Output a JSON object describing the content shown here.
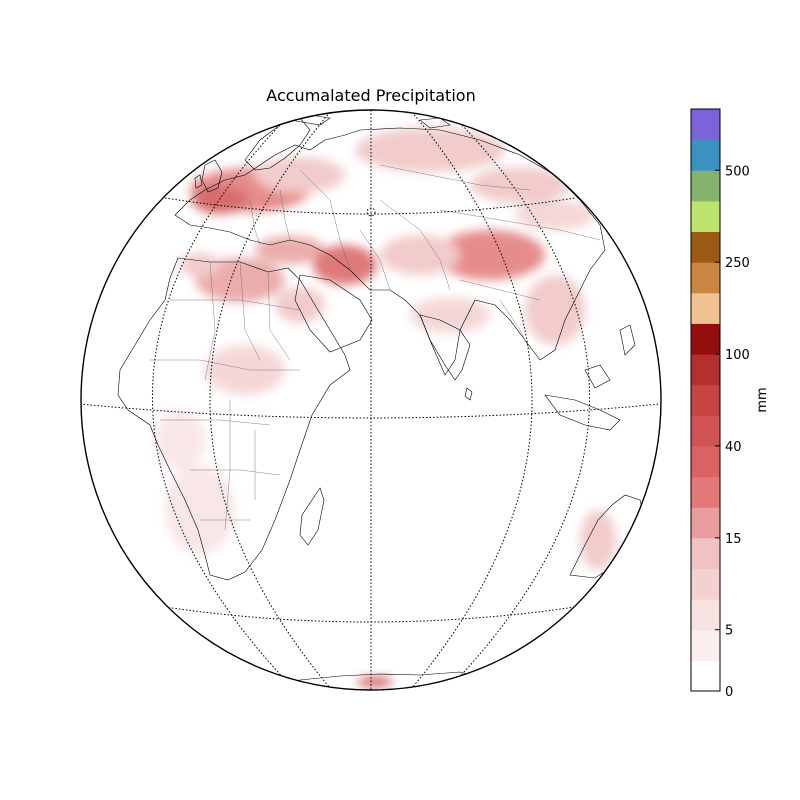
{
  "title": "Accumalated Precipitation",
  "colorbar": {
    "label": "mm",
    "tick_labels": [
      {
        "label": "0",
        "level_index": 0
      },
      {
        "label": "5",
        "level_index": 2
      },
      {
        "label": "15",
        "level_index": 5
      },
      {
        "label": "40",
        "level_index": 8
      },
      {
        "label": "100",
        "level_index": 11
      },
      {
        "label": "250",
        "level_index": 14
      },
      {
        "label": "500",
        "level_index": 17
      }
    ],
    "colors": [
      "#ffffff",
      "#fbeeee",
      "#f8e3e3",
      "#f4d0d0",
      "#f0c2c2",
      "#e89e9e",
      "#e27878",
      "#da6262",
      "#cf5353",
      "#c54444",
      "#b23030",
      "#930f0f",
      "#f1c291",
      "#c88642",
      "#9b5a13",
      "#bde36c",
      "#86b36b",
      "#3b92c0",
      "#7b63da"
    ]
  },
  "map": {
    "projection": "orthographic",
    "parallels_shown": true,
    "meridians_shown": true,
    "coastlines_shown": true,
    "country_borders_shown": true,
    "features": "coastlines, country borders, parallels and meridians"
  }
}
